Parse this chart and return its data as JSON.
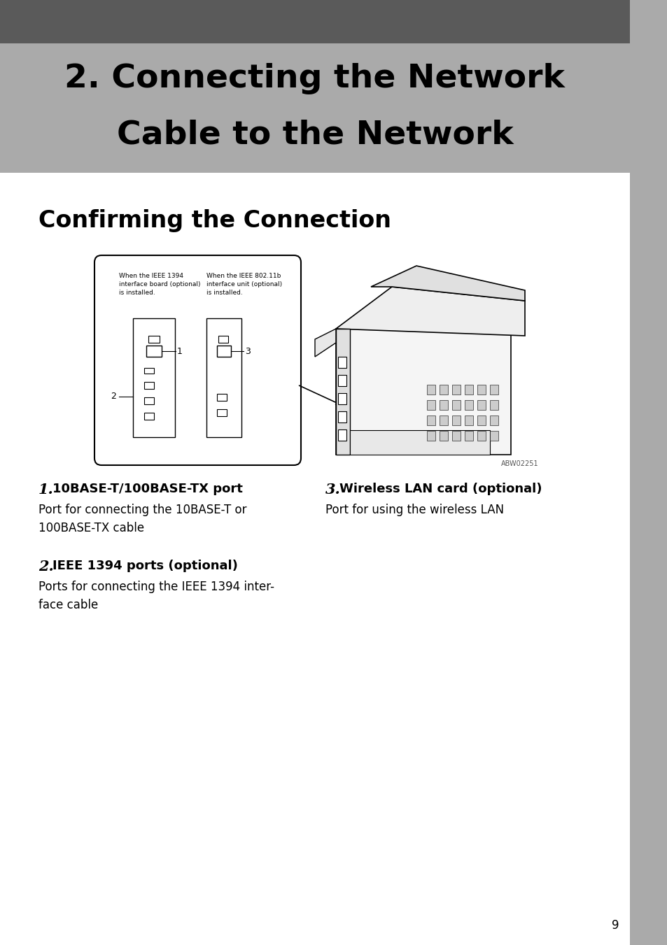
{
  "title_line1": "2. Connecting the Network",
  "title_line2": "Cable to the Network",
  "subtitle": "Confirming the Connection",
  "header_dark_color": "#5a5a5a",
  "header_light_color": "#aaaaaa",
  "sidebar_color": "#aaaaaa",
  "bg_color": "#ffffff",
  "title_fontsize": 34,
  "subtitle_fontsize": 24,
  "item1_num": "1.",
  "item1_title": "10BASE-T/100BASE-TX port",
  "item1_desc": "Port for connecting the 10BASE-T or\n100BASE-TX cable",
  "item2_num": "2.",
  "item2_title": "IEEE 1394 ports (optional)",
  "item2_desc": "Ports for connecting the IEEE 1394 inter-\nface cable",
  "item3_num": "3.",
  "item3_title": "Wireless LAN card (optional)",
  "item3_desc": "Port for using the wireless LAN",
  "page_number": "9",
  "figure_caption": "ABW02251",
  "fig_label1": "When the IEEE 1394\ninterface board (optional)\nis installed.",
  "fig_label2": "When the IEEE 802.11b\ninterface unit (optional)\nis installed."
}
